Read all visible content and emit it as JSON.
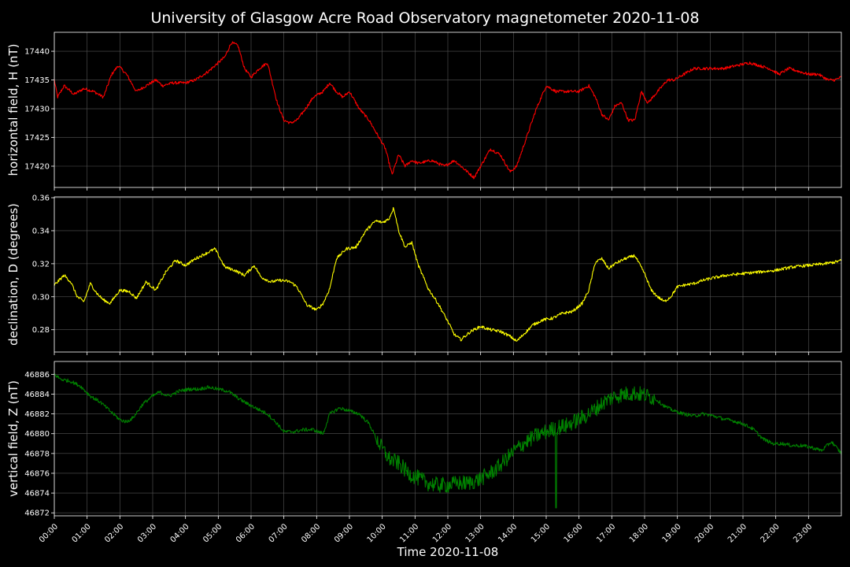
{
  "chart_data": {
    "type": "line",
    "title": "University of Glasgow Acre Road Observatory magnetometer 2020-11-08",
    "xlabel": "Time 2020-11-08",
    "x_tick_labels": [
      "00:00",
      "01:00",
      "02:00",
      "03:00",
      "04:00",
      "05:00",
      "06:00",
      "07:00",
      "08:00",
      "09:00",
      "10:00",
      "11:00",
      "12:00",
      "13:00",
      "14:00",
      "15:00",
      "16:00",
      "17:00",
      "18:00",
      "19:00",
      "20:00",
      "21:00",
      "22:00",
      "23:00"
    ],
    "xlim_hours": [
      0,
      24
    ],
    "grid": true,
    "panels": [
      {
        "ylabel": "horizontal field, H (nT)",
        "color": "#ff0000",
        "ylim": [
          17416.3,
          17443.3
        ],
        "yticks": [
          17420,
          17425,
          17430,
          17435,
          17440
        ],
        "ytick_labels": [
          "17420",
          "17425",
          "17430",
          "17435",
          "17440"
        ],
        "noise": 0.25,
        "x": [
          0,
          0.1,
          0.3,
          0.6,
          0.9,
          1.2,
          1.5,
          1.75,
          1.95,
          2.2,
          2.5,
          2.8,
          3.1,
          3.3,
          3.6,
          4.0,
          4.3,
          4.7,
          5.0,
          5.2,
          5.4,
          5.6,
          5.8,
          6.0,
          6.25,
          6.5,
          6.8,
          7.0,
          7.2,
          7.4,
          7.6,
          7.9,
          8.2,
          8.4,
          8.6,
          8.8,
          9.0,
          9.3,
          9.6,
          9.9,
          10.1,
          10.3,
          10.5,
          10.7,
          10.9,
          11.1,
          11.5,
          11.9,
          12.2,
          12.5,
          12.8,
          13.0,
          13.3,
          13.6,
          13.9,
          14.1,
          14.4,
          14.7,
          15.0,
          15.3,
          15.6,
          16.0,
          16.3,
          16.5,
          16.7,
          16.9,
          17.1,
          17.3,
          17.5,
          17.7,
          17.9,
          18.1,
          18.4,
          18.7,
          18.9,
          19.2,
          19.5,
          19.8,
          20.0,
          20.4,
          20.8,
          21.2,
          21.5,
          21.8,
          22.1,
          22.4,
          22.7,
          23.0,
          23.3,
          23.6,
          23.8,
          24.0
        ],
        "y": [
          17435,
          17432,
          17434,
          17432.5,
          17433.5,
          17433,
          17432,
          17436,
          17437.5,
          17436,
          17433,
          17434,
          17435,
          17434,
          17434.5,
          17434.5,
          17435,
          17436.5,
          17438,
          17439,
          17441.5,
          17441,
          17437,
          17435.5,
          17437,
          17438,
          17431,
          17428,
          17427.5,
          17428,
          17429.5,
          17432,
          17433,
          17434.5,
          17433,
          17432,
          17433,
          17430,
          17428,
          17425,
          17423,
          17418.5,
          17422,
          17420,
          17421,
          17420.5,
          17421,
          17420,
          17421,
          17419.5,
          17418,
          17420,
          17423,
          17422,
          17419,
          17420,
          17425,
          17430,
          17434,
          17433,
          17433,
          17433,
          17434,
          17432,
          17429,
          17428,
          17430.5,
          17431,
          17428,
          17428,
          17433,
          17431,
          17433,
          17435,
          17435,
          17436,
          17437,
          17437,
          17437,
          17437,
          17437.5,
          17438,
          17437.5,
          17437,
          17436,
          17437,
          17436.5,
          17436,
          17436,
          17435,
          17435,
          17435.5
        ]
      },
      {
        "ylabel": "declination, D (degrees)",
        "color": "#ffff00",
        "ylim": [
          0.2665,
          0.3605
        ],
        "yticks": [
          0.28,
          0.3,
          0.32,
          0.34,
          0.36
        ],
        "ytick_labels": [
          "0.28",
          "0.30",
          "0.32",
          "0.34",
          "0.36"
        ],
        "noise": 0.0009,
        "x": [
          0,
          0.3,
          0.5,
          0.7,
          0.9,
          1.1,
          1.3,
          1.5,
          1.7,
          2.0,
          2.3,
          2.5,
          2.8,
          3.1,
          3.4,
          3.7,
          4.0,
          4.3,
          4.6,
          4.9,
          5.2,
          5.5,
          5.8,
          6.1,
          6.3,
          6.6,
          6.9,
          7.2,
          7.4,
          7.7,
          8.0,
          8.2,
          8.4,
          8.6,
          8.9,
          9.2,
          9.5,
          9.8,
          10.0,
          10.2,
          10.35,
          10.5,
          10.7,
          10.9,
          11.1,
          11.4,
          11.7,
          12.0,
          12.2,
          12.4,
          12.7,
          13.0,
          13.3,
          13.6,
          13.9,
          14.1,
          14.3,
          14.6,
          14.9,
          15.2,
          15.5,
          15.8,
          16.1,
          16.3,
          16.5,
          16.7,
          16.9,
          17.1,
          17.4,
          17.7,
          18.0,
          18.2,
          18.4,
          18.6,
          18.8,
          19.0,
          19.2,
          19.5,
          19.8,
          20.0,
          20.5,
          21.0,
          21.5,
          22.0,
          22.5,
          23.0,
          23.5,
          23.8,
          24.0
        ],
        "y": [
          0.307,
          0.313,
          0.309,
          0.3,
          0.297,
          0.308,
          0.302,
          0.298,
          0.296,
          0.304,
          0.303,
          0.299,
          0.309,
          0.304,
          0.315,
          0.322,
          0.319,
          0.323,
          0.326,
          0.329,
          0.318,
          0.316,
          0.313,
          0.319,
          0.312,
          0.309,
          0.31,
          0.309,
          0.306,
          0.295,
          0.292,
          0.296,
          0.305,
          0.323,
          0.329,
          0.33,
          0.34,
          0.346,
          0.345,
          0.347,
          0.354,
          0.34,
          0.33,
          0.333,
          0.319,
          0.305,
          0.296,
          0.285,
          0.277,
          0.274,
          0.279,
          0.282,
          0.28,
          0.279,
          0.276,
          0.273,
          0.277,
          0.283,
          0.286,
          0.287,
          0.29,
          0.291,
          0.296,
          0.304,
          0.321,
          0.323,
          0.317,
          0.32,
          0.323,
          0.325,
          0.314,
          0.304,
          0.3,
          0.297,
          0.3,
          0.306,
          0.307,
          0.308,
          0.31,
          0.311,
          0.313,
          0.314,
          0.315,
          0.316,
          0.318,
          0.319,
          0.32,
          0.321,
          0.322
        ]
      },
      {
        "ylabel": "vertical field, Z (nT)",
        "color": "#008000",
        "ylim": [
          46871.7,
          46887.3
        ],
        "yticks": [
          46872,
          46874,
          46876,
          46878,
          46880,
          46882,
          46884,
          46886
        ],
        "ytick_labels": [
          "46872",
          "46874",
          "46876",
          "46878",
          "46880",
          "46882",
          "46884",
          "46886"
        ],
        "noise": 0.18,
        "x": [
          0,
          0.2,
          0.5,
          0.8,
          1.1,
          1.4,
          1.7,
          2.0,
          2.2,
          2.4,
          2.7,
          3.0,
          3.2,
          3.5,
          3.8,
          4.1,
          4.4,
          4.7,
          5.0,
          5.3,
          5.6,
          5.9,
          6.2,
          6.5,
          6.8,
          7.0,
          7.3,
          7.6,
          7.9,
          8.2,
          8.4,
          8.7,
          9.0,
          9.3,
          9.6,
          9.9,
          10.2,
          10.5,
          10.8,
          11.1,
          11.4,
          11.7,
          12.0,
          12.3,
          12.6,
          12.9,
          13.2,
          13.5,
          13.8,
          14.1,
          14.4,
          14.7,
          15.0,
          15.3,
          15.6,
          15.9,
          16.2,
          16.5,
          16.8,
          17.1,
          17.4,
          17.7,
          18.0,
          18.3,
          18.6,
          18.9,
          19.2,
          19.5,
          19.8,
          20.1,
          20.4,
          20.7,
          21.0,
          21.3,
          21.6,
          21.9,
          22.2,
          22.5,
          22.8,
          23.1,
          23.4,
          23.7,
          24.0
        ],
        "y": [
          46886,
          46885.5,
          46885.3,
          46884.8,
          46883.8,
          46883.2,
          46882.3,
          46881.4,
          46881.2,
          46881.6,
          46883,
          46883.8,
          46884.2,
          46883.8,
          46884.3,
          46884.5,
          46884.5,
          46884.7,
          46884.5,
          46884.3,
          46883.6,
          46883,
          46882.5,
          46882,
          46881,
          46880.2,
          46880.2,
          46880.4,
          46880.4,
          46880,
          46882,
          46882.6,
          46882.3,
          46882,
          46881,
          46879,
          46877.5,
          46877,
          46876,
          46875.5,
          46875,
          46874.8,
          46874.8,
          46875,
          46875,
          46875.3,
          46875.8,
          46876.5,
          46877.5,
          46878.5,
          46879.2,
          46879.8,
          46880.2,
          46880.6,
          46880.8,
          46881.3,
          46881.8,
          46882.5,
          46883.3,
          46883.8,
          46884,
          46884.1,
          46883.9,
          46883.6,
          46882.8,
          46882.3,
          46882,
          46881.8,
          46882,
          46881.8,
          46881.5,
          46881.3,
          46881,
          46880.5,
          46879.5,
          46879,
          46879,
          46878.8,
          46878.8,
          46878.6,
          46878.3,
          46879.2,
          46878
        ]
      }
    ]
  }
}
